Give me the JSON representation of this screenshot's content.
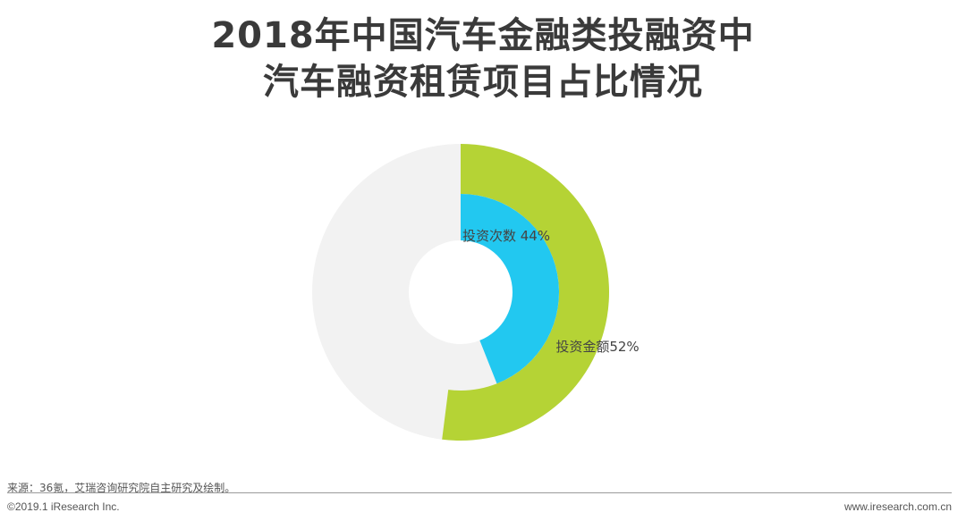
{
  "title_line1": "2018年中国汽车金融类投融资中",
  "title_line2": "汽车融资租赁项目占比情况",
  "chart_data": {
    "type": "pie",
    "subtype": "nested-donut",
    "title": "2018年中国汽车金融类投融资中汽车融资租赁项目占比情况",
    "series": [
      {
        "name": "投资金额",
        "value": 52,
        "unit": "%",
        "label": "投资金额52%",
        "color": "#b5d335"
      },
      {
        "name": "投资次数",
        "value": 44,
        "unit": "%",
        "label": "投资次数 44%",
        "color": "#22c8f0"
      }
    ],
    "remainder_color": "#f2f2f2"
  },
  "footer": {
    "source": "来源：36氪，艾瑞咨询研究院自主研究及绘制。",
    "copyright": "©2019.1 iResearch Inc.",
    "website": "www.iresearch.com.cn"
  }
}
